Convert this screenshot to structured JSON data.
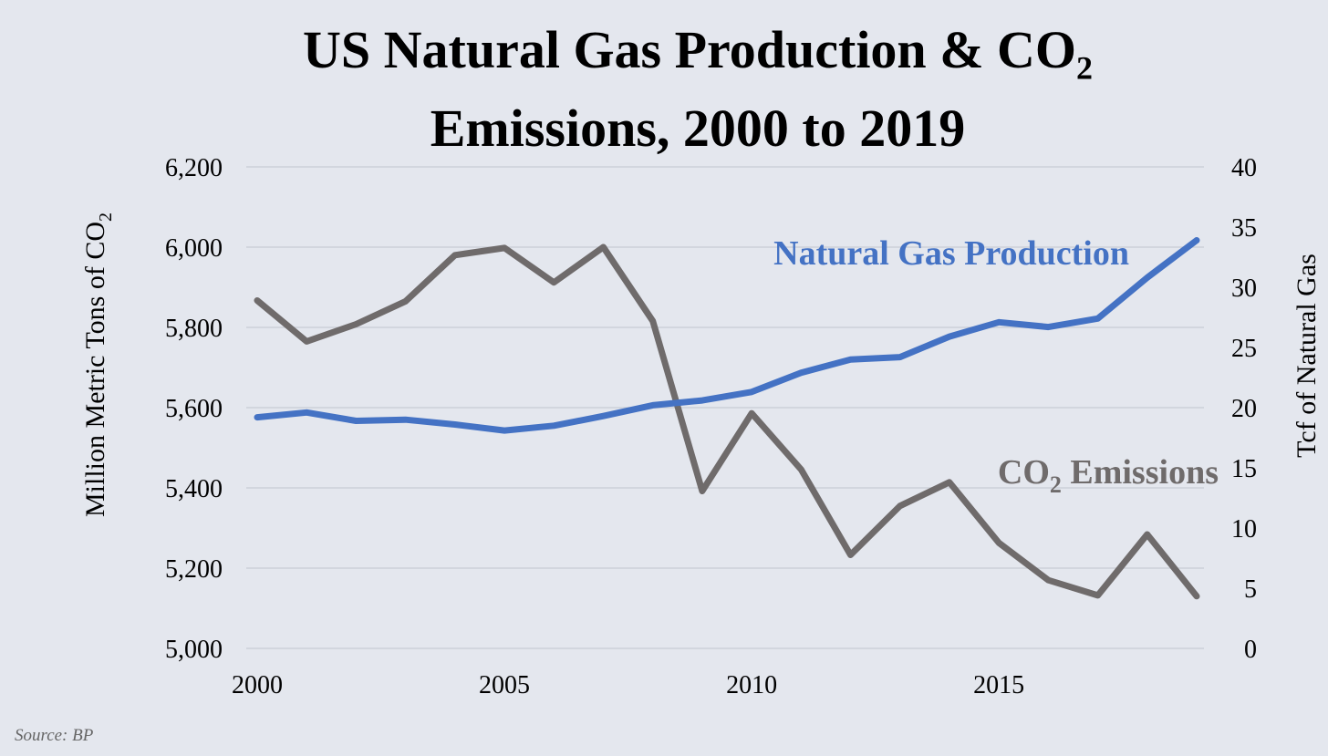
{
  "chart_data": {
    "type": "line",
    "title_line1": "US Natural Gas Production & CO",
    "title_line2": "Emissions, 2000 to 2019",
    "title_subscript": "2",
    "ylabel": "Million Metric Tons of CO",
    "ylabel_subscript": "2",
    "y2label": "Tcf of Natural Gas",
    "ylim": [
      5000,
      6200
    ],
    "y2lim": [
      0,
      40
    ],
    "x_ticks": [
      2000,
      2005,
      2010,
      2015
    ],
    "y_tick_labels": [
      "5,000",
      "5,200",
      "5,400",
      "5,600",
      "5,800",
      "6,000",
      "6,200"
    ],
    "y_ticks": [
      5000,
      5200,
      5400,
      5600,
      5800,
      6000,
      6200
    ],
    "y2_ticks": [
      0,
      5,
      10,
      15,
      20,
      25,
      30,
      35,
      40
    ],
    "grid": true,
    "x": [
      2000,
      2001,
      2002,
      2003,
      2004,
      2005,
      2006,
      2007,
      2008,
      2009,
      2010,
      2011,
      2012,
      2013,
      2014,
      2015,
      2016,
      2017,
      2018,
      2019
    ],
    "series": [
      {
        "name": "Natural Gas Production",
        "axis": "right",
        "color": "#4472c4",
        "values": [
          19.2,
          19.6,
          18.9,
          19.0,
          18.6,
          18.1,
          18.5,
          19.3,
          20.2,
          20.6,
          21.3,
          22.9,
          24.0,
          24.2,
          25.9,
          27.1,
          26.7,
          27.4,
          30.8,
          33.9
        ]
      },
      {
        "name": "CO",
        "name_subscript": "2",
        "name_suffix": " Emissions",
        "axis": "left",
        "color": "#6f6b6b",
        "values": [
          5867,
          5765,
          5808,
          5865,
          5980,
          5998,
          5912,
          6000,
          5816,
          5392,
          5586,
          5446,
          5233,
          5355,
          5414,
          5263,
          5170,
          5132,
          5284,
          5130
        ]
      }
    ]
  },
  "source": "Source: BP"
}
